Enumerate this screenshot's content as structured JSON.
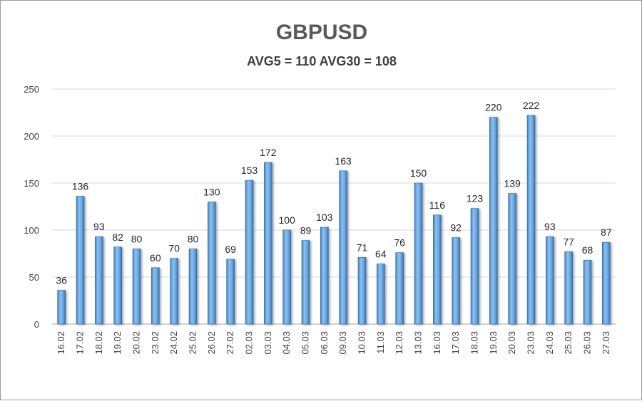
{
  "chart_data": {
    "type": "bar",
    "title": "GBPUSD",
    "subtitle": "AVG5 = 110 AVG30 = 108",
    "xlabel": "",
    "ylabel": "",
    "ylim": [
      0,
      250
    ],
    "yticks": [
      0,
      50,
      100,
      150,
      200,
      250
    ],
    "grid": true,
    "legend": "none",
    "bar_color": "#5b9bd5",
    "categories": [
      "16.02",
      "17.02",
      "18.02",
      "19.02",
      "20.02",
      "23.02",
      "24.02",
      "25.02",
      "26.02",
      "27.02",
      "02.03",
      "03.03",
      "04.03",
      "05.03",
      "06.03",
      "09.03",
      "10.03",
      "11.03",
      "12.03",
      "13.03",
      "16.03",
      "17.03",
      "18.03",
      "19.03",
      "20.03",
      "23.03",
      "24.03",
      "25.03",
      "26.03",
      "27.03"
    ],
    "values": [
      36,
      136,
      93,
      82,
      80,
      60,
      70,
      80,
      130,
      69,
      153,
      172,
      100,
      89,
      103,
      163,
      71,
      64,
      76,
      150,
      116,
      92,
      123,
      220,
      139,
      222,
      93,
      77,
      68,
      87
    ]
  }
}
